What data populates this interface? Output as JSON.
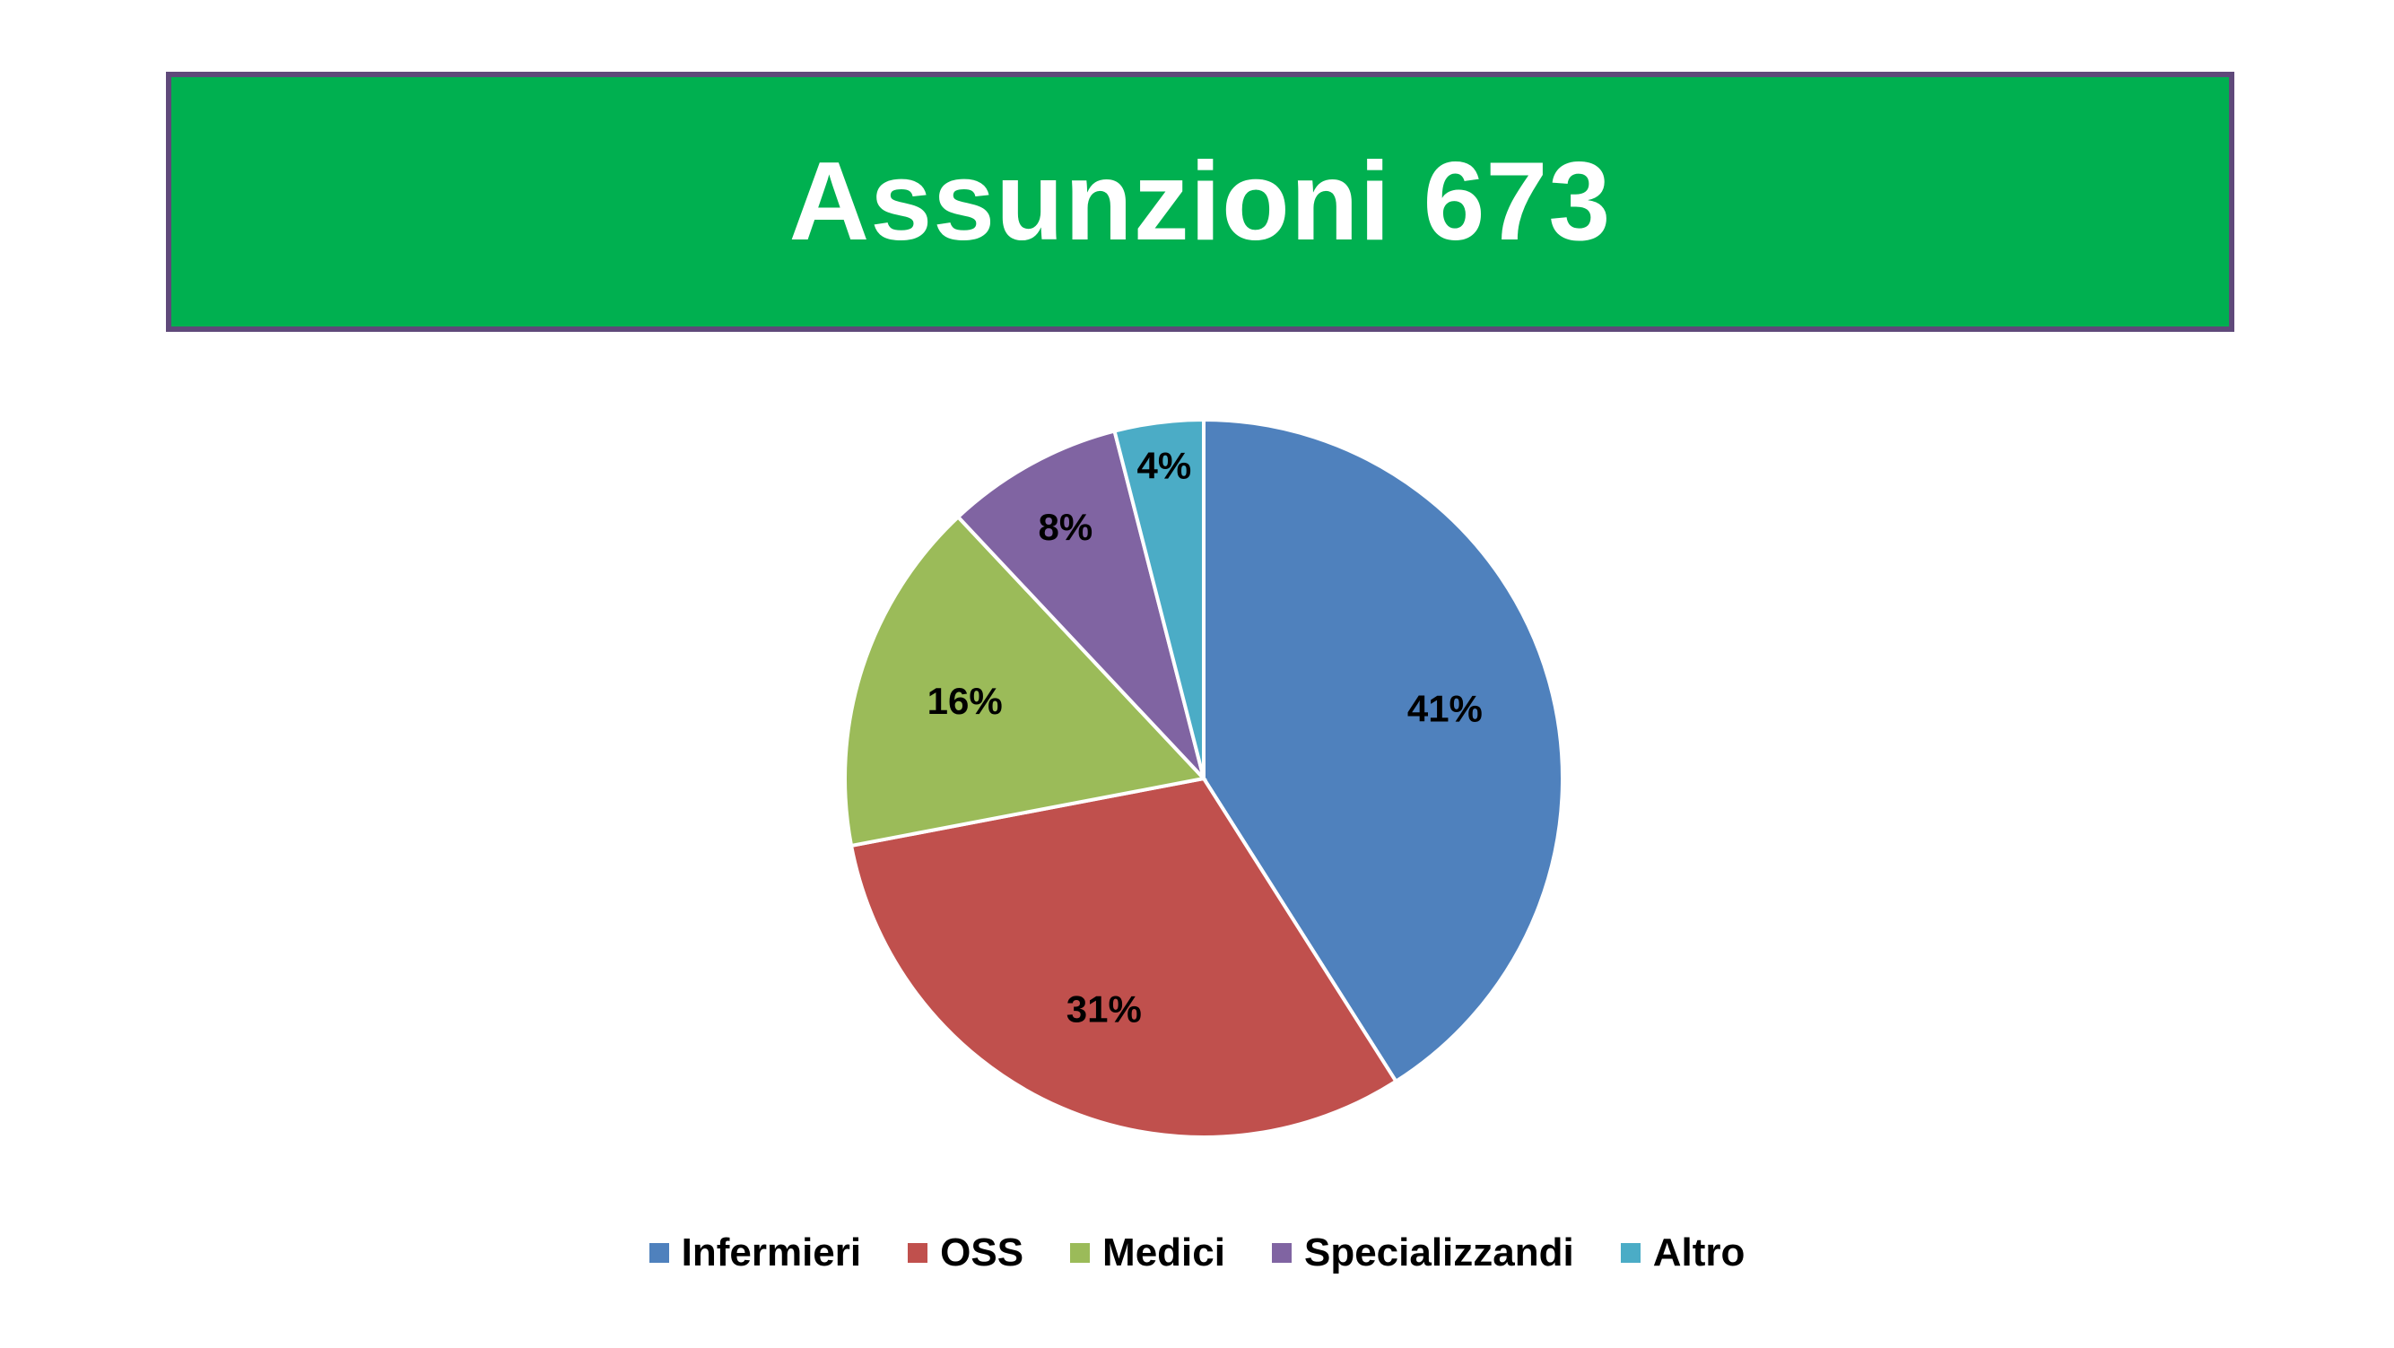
{
  "title": "Assunzioni 673",
  "colors": {
    "banner": "#00b050",
    "banner_border": "#5f497a",
    "title_text": "#ffffff"
  },
  "chart_data": {
    "type": "pie",
    "title": "Assunzioni 673",
    "categories": [
      "Infermieri",
      "OSS",
      "Medici",
      "Specializzandi",
      "Altro"
    ],
    "values": [
      41,
      31,
      16,
      8,
      4
    ],
    "labels": [
      "41%",
      "31%",
      "16%",
      "8%",
      "4%"
    ],
    "colors": [
      "#4f81bd",
      "#c0504d",
      "#9bbb59",
      "#8064a2",
      "#4bacc6"
    ],
    "legend_position": "bottom",
    "start": "12 o'clock",
    "direction": "clockwise"
  }
}
